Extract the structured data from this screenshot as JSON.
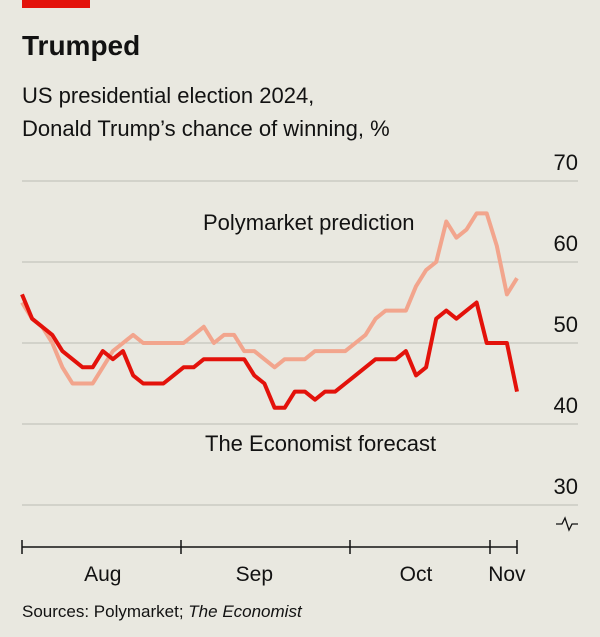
{
  "chart_data": {
    "type": "line",
    "title": "Trumped",
    "subtitle": [
      "US presidential election 2024,",
      "Donald Trump’s chance of winning, %"
    ],
    "source": [
      "Sources: Polymarket;",
      "The Economist"
    ],
    "categories": [
      null,
      null,
      null,
      null,
      null,
      null,
      null,
      null,
      "Aug",
      null,
      null,
      null,
      null,
      null,
      null,
      null,
      null,
      null,
      null,
      null,
      null,
      null,
      null,
      "Sep",
      null,
      null,
      null,
      null,
      null,
      null,
      null,
      null,
      null,
      null,
      null,
      null,
      null,
      null,
      null,
      "Oct",
      null,
      null,
      null,
      null,
      null,
      null,
      null,
      null,
      "Nov",
      null
    ],
    "series": [
      {
        "name": "Polymarket prediction",
        "color": "#f2a58d",
        "values": [
          55,
          53,
          52,
          50,
          47,
          45,
          45,
          45,
          47,
          49,
          50,
          51,
          50,
          50,
          50,
          50,
          50,
          51,
          52,
          50,
          51,
          51,
          49,
          49,
          48,
          47,
          48,
          48,
          48,
          49,
          49,
          49,
          49,
          50,
          51,
          53,
          54,
          54,
          54,
          57,
          59,
          60,
          65,
          63,
          64,
          66,
          66,
          62,
          56,
          58
        ]
      },
      {
        "name": "The Economist forecast",
        "color": "#e3120b",
        "values": [
          56,
          53,
          52,
          51,
          49,
          48,
          47,
          47,
          49,
          48,
          49,
          46,
          45,
          45,
          45,
          46,
          47,
          47,
          48,
          48,
          48,
          48,
          48,
          46,
          45,
          42,
          42,
          44,
          44,
          43,
          44,
          44,
          45,
          46,
          47,
          48,
          48,
          48,
          49,
          46,
          47,
          53,
          54,
          53,
          54,
          55,
          50,
          50,
          50,
          44
        ]
      }
    ],
    "ylim": [
      28,
      70
    ],
    "yticks": [
      30,
      40,
      50,
      60,
      70
    ],
    "grid": true
  }
}
